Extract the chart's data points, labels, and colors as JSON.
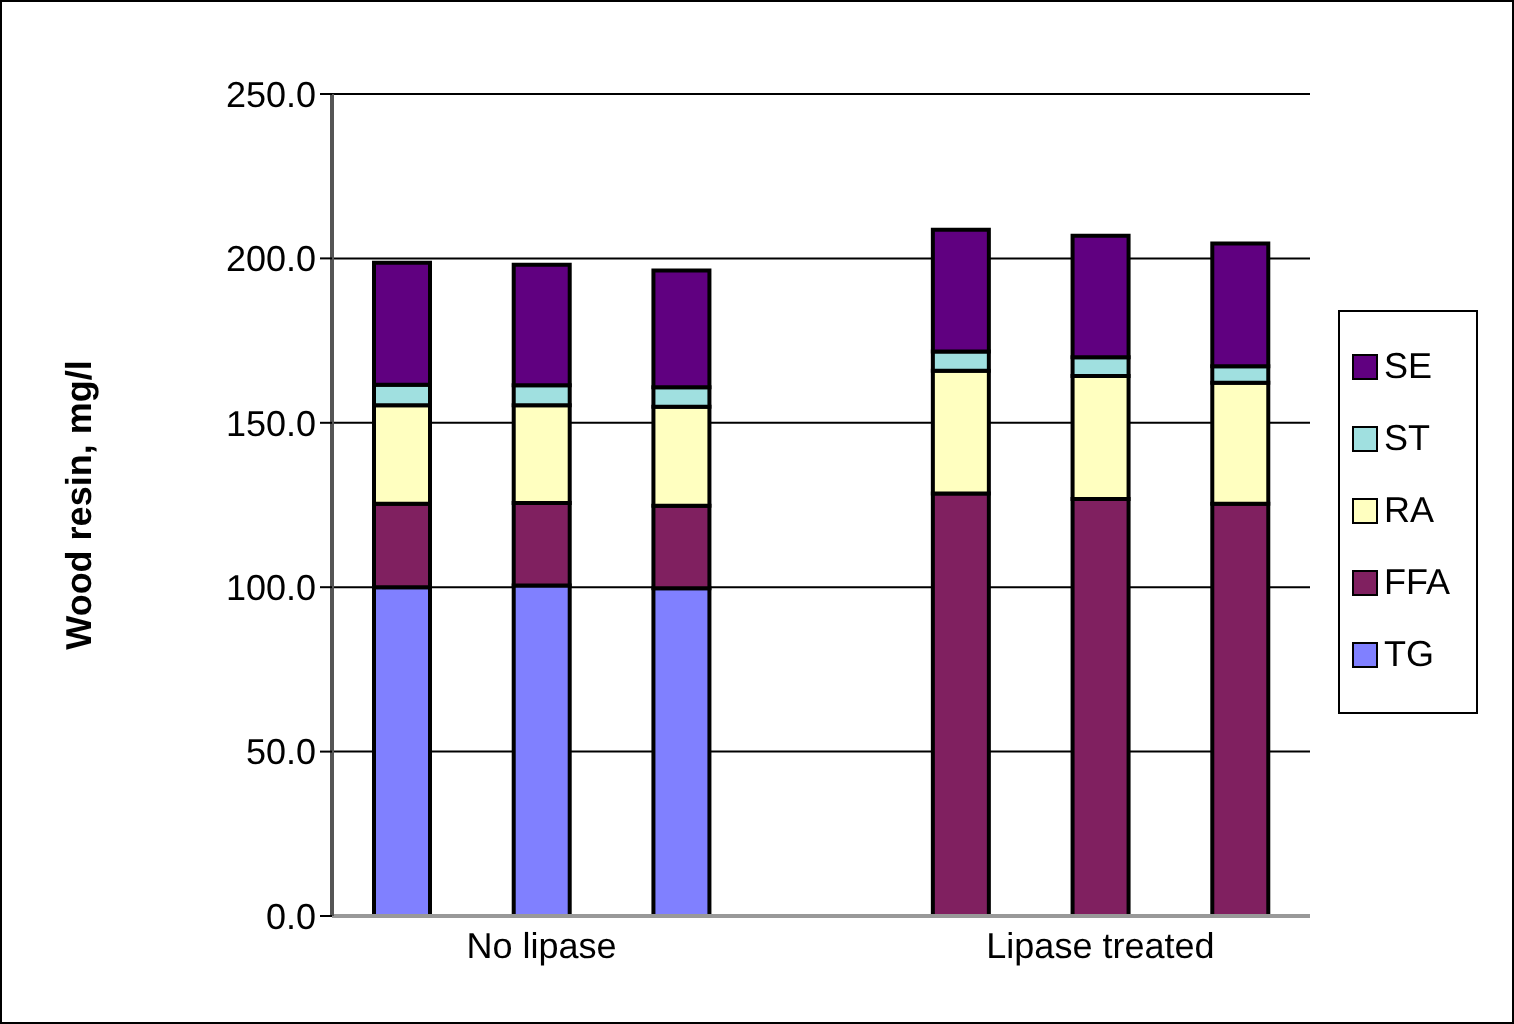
{
  "chart_data": {
    "type": "bar",
    "stacked": true,
    "ylabel": "Wood resin, mg/l",
    "categories": [
      null,
      "No lipase",
      null,
      null,
      null,
      "Lipase treated",
      null
    ],
    "series": [
      {
        "name": "TG",
        "color": "#8080ff",
        "values": [
          100,
          100.5,
          99.7,
          null,
          0,
          0,
          0
        ]
      },
      {
        "name": "FFA",
        "color": "#802060",
        "values": [
          25.4,
          25.1,
          25.1,
          null,
          128.5,
          126.8,
          125.4
        ]
      },
      {
        "name": "RA",
        "color": "#ffffc0",
        "values": [
          29.9,
          29.7,
          30.1,
          null,
          37.3,
          37.4,
          36.8
        ]
      },
      {
        "name": "ST",
        "color": "#a0e0e0",
        "values": [
          6.3,
          6.1,
          5.9,
          null,
          5.9,
          5.7,
          5.0
        ]
      },
      {
        "name": "SE",
        "color": "#600080",
        "values": [
          37.1,
          36.7,
          35.5,
          null,
          37.0,
          37.0,
          37.3
        ]
      }
    ],
    "ylim": [
      0,
      250
    ],
    "yticks": [
      {
        "value": 0,
        "label": "0.0"
      },
      {
        "value": 50,
        "label": "50.0"
      },
      {
        "value": 100,
        "label": "100.0"
      },
      {
        "value": 150,
        "label": "150.0"
      },
      {
        "value": 200,
        "label": "200.0"
      },
      {
        "value": 250,
        "label": "250.0"
      }
    ],
    "grid": "y",
    "legend": "right"
  }
}
